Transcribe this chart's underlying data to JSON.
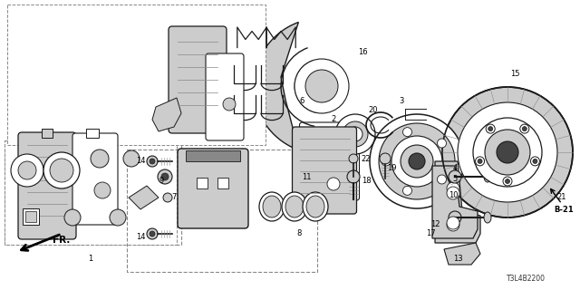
{
  "bg_color": "#ffffff",
  "line_color": "#1a1a1a",
  "gray_light": "#cccccc",
  "gray_mid": "#888888",
  "gray_dark": "#444444",
  "catalog_number": "T3L4B2200",
  "part_ref": "B-21",
  "figsize": [
    6.4,
    3.2
  ],
  "dpi": 100
}
